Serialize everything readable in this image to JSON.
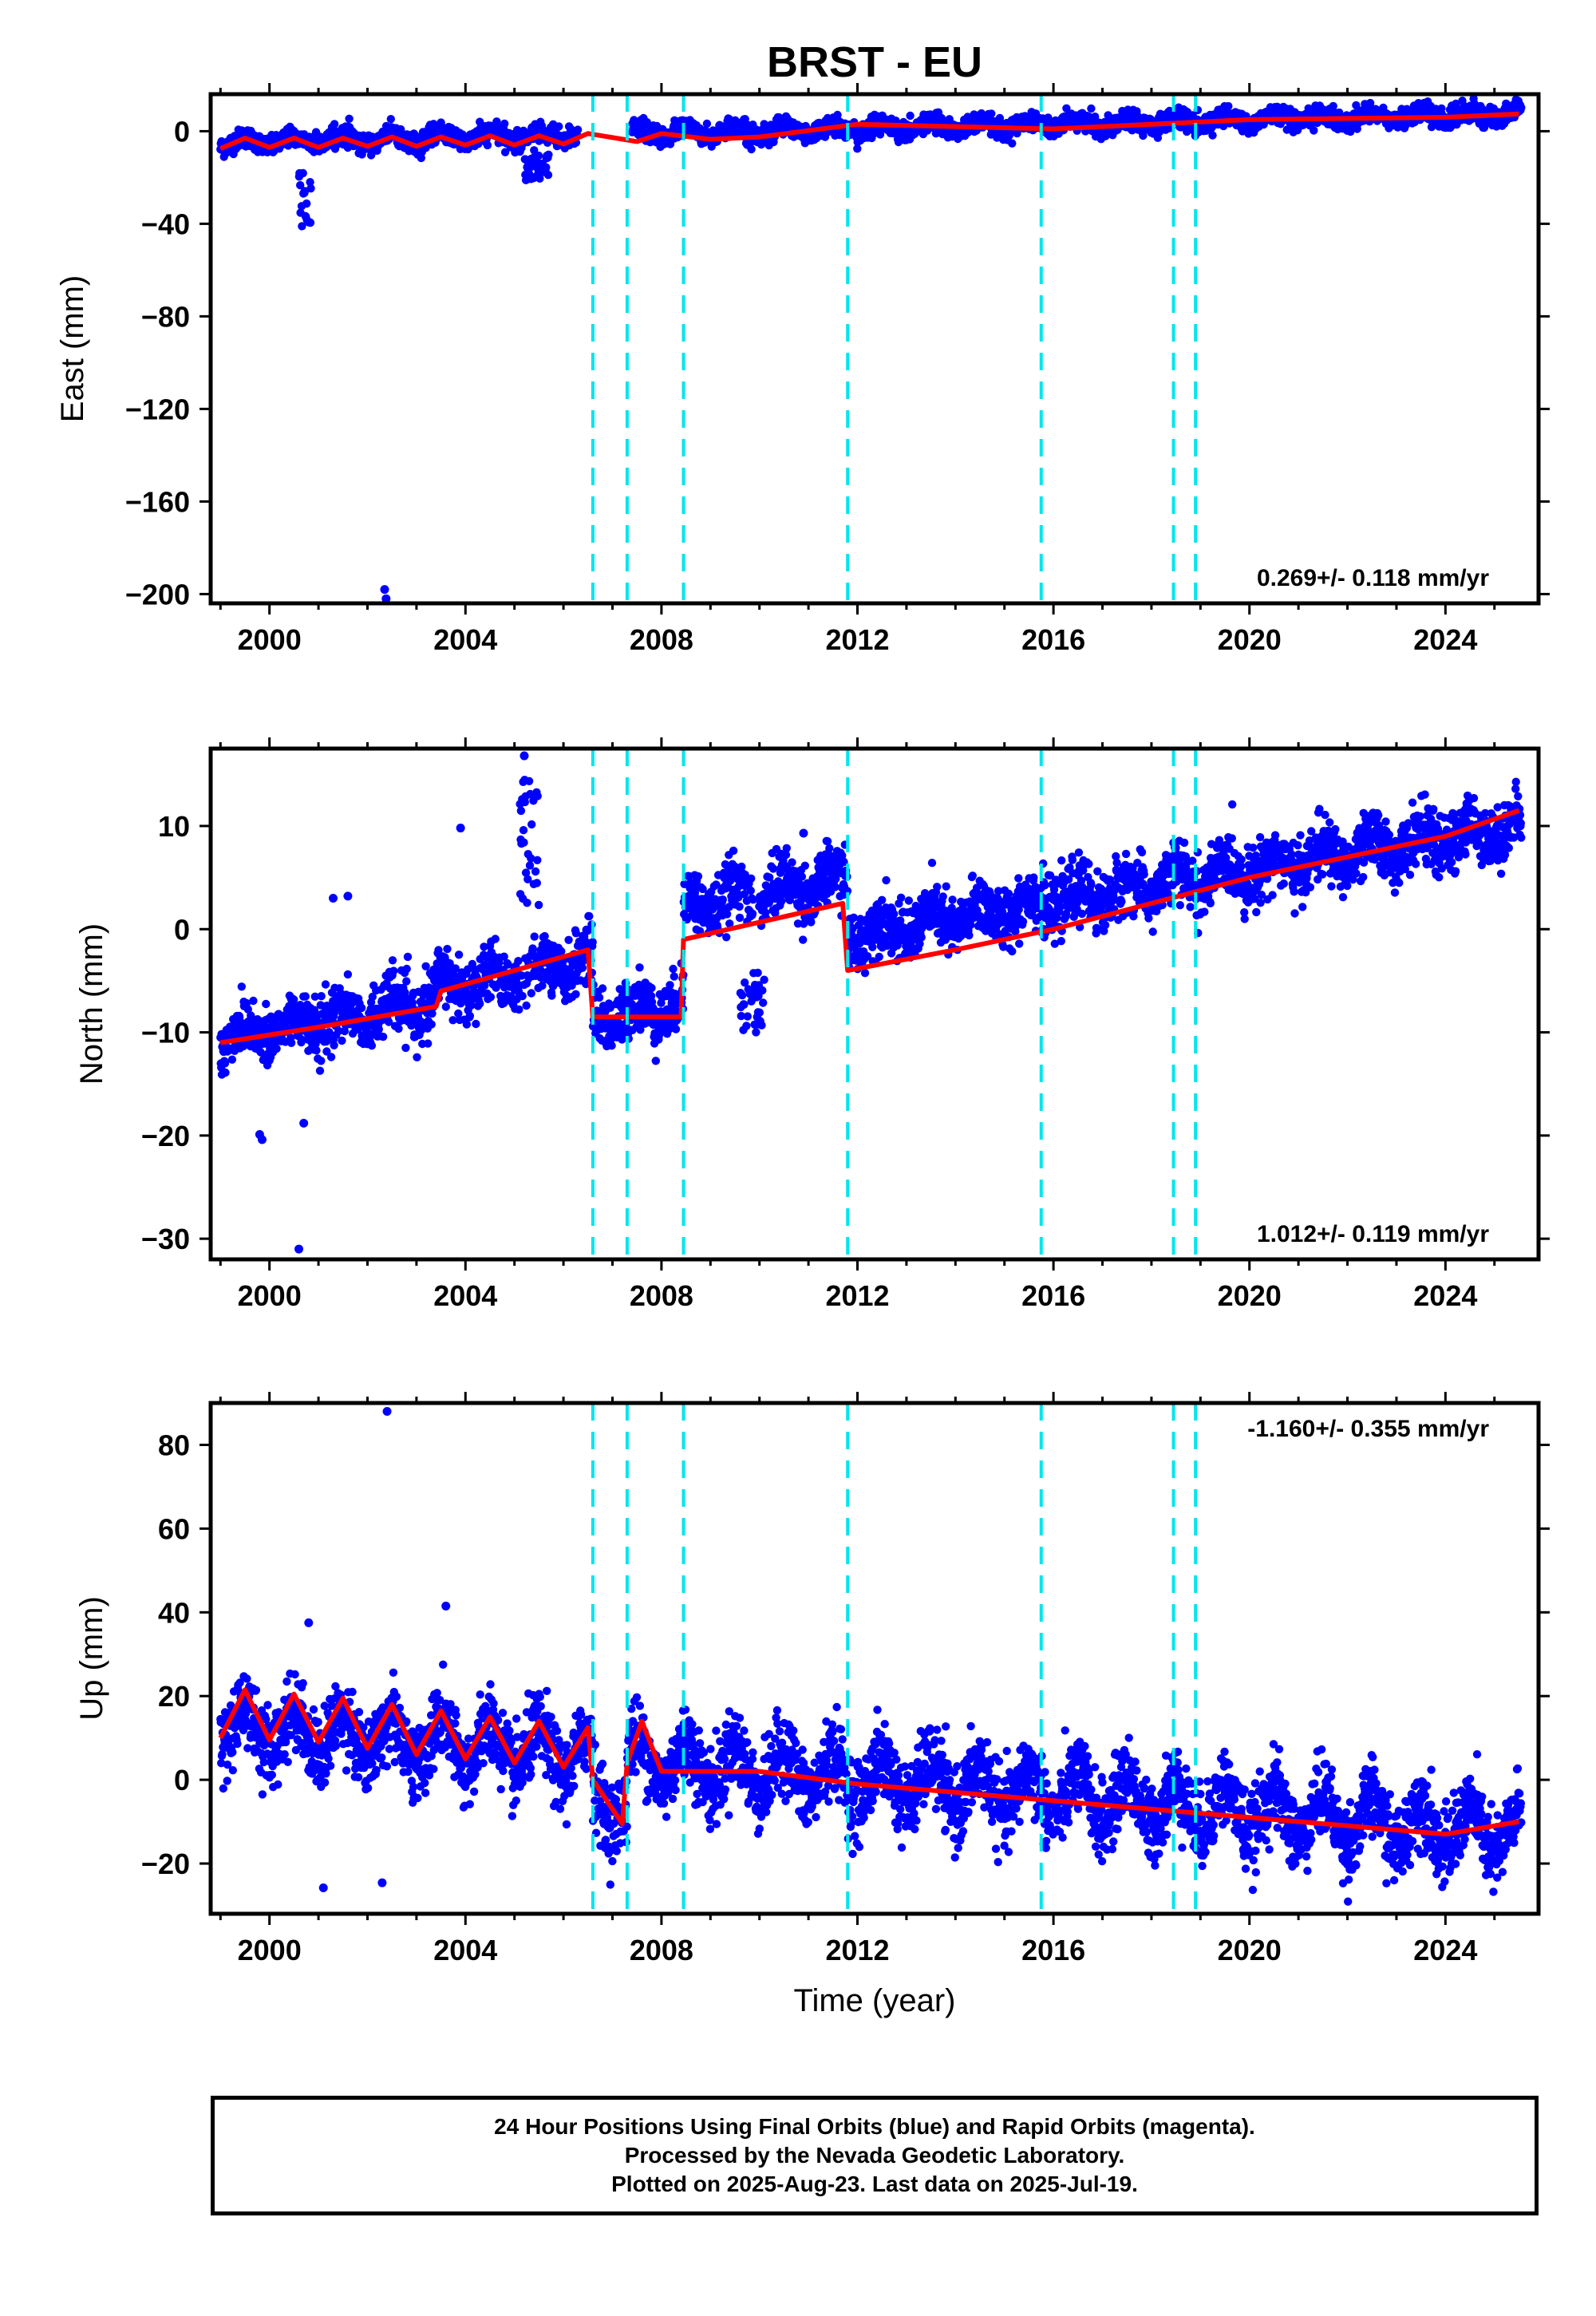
{
  "title": "BRST - EU",
  "xlabel": "Time (year)",
  "footer": [
    "24 Hour Positions Using Final Orbits (blue) and Rapid Orbits (magenta).",
    "Processed by the Nevada Geodetic Laboratory.",
    "Plotted on 2025-Aug-23. Last data on 2025-Jul-19."
  ],
  "colors": {
    "final_orbits": "#0000ff",
    "rapid_orbits": "#ff00ff",
    "model_fit": "#ff0000",
    "breaks": "#00e5ee",
    "axes": "#000000"
  },
  "chart_data": [
    {
      "type": "scatter",
      "component": "east",
      "ylabel": "East (mm)",
      "xlim": [
        1998.8,
        2025.9
      ],
      "ylim": [
        -204,
        16
      ],
      "x_ticks": [
        2000,
        2004,
        2008,
        2012,
        2016,
        2020,
        2024
      ],
      "y_ticks": [
        0,
        -40,
        -80,
        -120,
        -160,
        -200
      ],
      "y_tick_labels": [
        "0",
        "−40",
        "−80",
        "−120",
        "−160",
        "−200"
      ],
      "rate_label": "0.269+/- 0.118 mm/yr",
      "rate_position": "bottom-right",
      "grid": false,
      "breaks": [
        2006.6,
        2007.3,
        2008.45,
        2011.8,
        2015.75,
        2018.45,
        2018.9
      ],
      "data_span": [
        1999.0,
        2025.55
      ],
      "gaps": [
        [
          2006.3,
          2007.4
        ]
      ],
      "trend": {
        "start": -5.0,
        "end": 7.5
      },
      "segment_offsets": [],
      "seasonal_amplitude": 2.2,
      "scatter_sigma": 2.0,
      "excursions": [
        {
          "x0": 2000.6,
          "x1": 2000.85,
          "y0": -18,
          "y1": -42
        },
        {
          "x0": 2005.2,
          "x1": 2005.7,
          "y0": -8,
          "y1": -22
        }
      ],
      "outliers": [
        [
          2002.35,
          -198
        ],
        [
          2002.38,
          -202
        ]
      ],
      "model_points": [
        [
          1999.0,
          -7.5
        ],
        [
          1999.5,
          -3.0
        ],
        [
          2000.0,
          -7.0
        ],
        [
          2000.5,
          -3.0
        ],
        [
          2001.0,
          -7.0
        ],
        [
          2001.5,
          -3.0
        ],
        [
          2002.0,
          -6.5
        ],
        [
          2002.5,
          -2.5
        ],
        [
          2003.0,
          -6.5
        ],
        [
          2003.5,
          -2.5
        ],
        [
          2004.0,
          -6.0
        ],
        [
          2004.5,
          -2.0
        ],
        [
          2005.0,
          -6.0
        ],
        [
          2005.5,
          -2.0
        ],
        [
          2006.0,
          -5.5
        ],
        [
          2006.5,
          -1.0
        ],
        [
          2007.5,
          -4.5
        ],
        [
          2008.0,
          -1.0
        ],
        [
          2009.0,
          -3.5
        ],
        [
          2010.0,
          -2.5
        ],
        [
          2012.0,
          3.0
        ],
        [
          2016.0,
          1.0
        ],
        [
          2020.0,
          5.0
        ],
        [
          2024.0,
          6.0
        ],
        [
          2025.5,
          7.5
        ]
      ]
    },
    {
      "type": "scatter",
      "component": "north",
      "ylabel": "North (mm)",
      "xlim": [
        1998.8,
        2025.9
      ],
      "ylim": [
        -32,
        17.5
      ],
      "x_ticks": [
        2000,
        2004,
        2008,
        2012,
        2016,
        2020,
        2024
      ],
      "y_ticks": [
        10,
        0,
        -10,
        -20,
        -30
      ],
      "y_tick_labels": [
        "10",
        "0",
        "−10",
        "−20",
        "−30"
      ],
      "rate_label": "1.012+/- 0.119 mm/yr",
      "rate_position": "bottom-right",
      "grid": false,
      "breaks": [
        2006.6,
        2007.3,
        2008.45,
        2011.8,
        2015.75,
        2018.45,
        2018.9
      ],
      "data_span": [
        1999.0,
        2025.55
      ],
      "gaps": [],
      "trend": {
        "start": -10.5,
        "end": 10.0
      },
      "segment_offsets": [
        {
          "x0": 2003.4,
          "x1": 2006.6,
          "dy": 1.5
        },
        {
          "x0": 2006.6,
          "x1": 2008.45,
          "dy": -4.0
        },
        {
          "x0": 2008.45,
          "x1": 2011.8,
          "dy": 5.5
        }
      ],
      "seasonal_amplitude": 1.1,
      "scatter_sigma": 1.4,
      "excursions": [
        {
          "x0": 2005.1,
          "x1": 2005.5,
          "y0": 2,
          "y1": 15
        },
        {
          "x0": 2009.6,
          "x1": 2010.1,
          "y0": -4,
          "y1": -10
        }
      ],
      "outliers": [
        [
          2005.2,
          16.8
        ],
        [
          2003.9,
          9.8
        ],
        [
          2001.3,
          3.0
        ],
        [
          2001.6,
          3.2
        ],
        [
          2000.6,
          -31.0
        ],
        [
          1999.8,
          -19.9
        ],
        [
          1999.85,
          -20.4
        ],
        [
          2000.7,
          -18.8
        ],
        [
          2010.9,
          9.3
        ]
      ],
      "model_points": [
        [
          1999.0,
          -11.0
        ],
        [
          2001.0,
          -9.5
        ],
        [
          2003.4,
          -7.5
        ],
        [
          2003.5,
          -6.0
        ],
        [
          2005.0,
          -4.0
        ],
        [
          2006.5,
          -2.0
        ],
        [
          2006.6,
          -8.5
        ],
        [
          2008.4,
          -8.5
        ],
        [
          2008.45,
          -1.0
        ],
        [
          2011.7,
          2.5
        ],
        [
          2011.8,
          -4.0
        ],
        [
          2014.0,
          -2.0
        ],
        [
          2016.0,
          0.0
        ],
        [
          2018.0,
          2.5
        ],
        [
          2020.0,
          5.0
        ],
        [
          2022.0,
          7.0
        ],
        [
          2024.0,
          9.0
        ],
        [
          2025.5,
          11.5
        ]
      ]
    },
    {
      "type": "scatter",
      "component": "up",
      "ylabel": "Up (mm)",
      "xlim": [
        1998.8,
        2025.9
      ],
      "ylim": [
        -32,
        90
      ],
      "x_ticks": [
        2000,
        2004,
        2008,
        2012,
        2016,
        2020,
        2024
      ],
      "y_ticks": [
        80,
        60,
        40,
        20,
        0,
        -20
      ],
      "y_tick_labels": [
        "80",
        "60",
        "40",
        "20",
        "0",
        "−20"
      ],
      "rate_label": "-1.160+/- 0.355 mm/yr",
      "rate_position": "top-right",
      "grid": false,
      "breaks": [
        2006.6,
        2007.3,
        2008.45,
        2011.8,
        2015.75,
        2018.45,
        2018.9
      ],
      "data_span": [
        1999.0,
        2025.55
      ],
      "gaps": [],
      "trend": {
        "start": 13.0,
        "end": -13.0
      },
      "segment_offsets": [
        {
          "x0": 2006.6,
          "x1": 2007.3,
          "dy": -10.0
        }
      ],
      "seasonal_amplitude": 5.5,
      "scatter_sigma": 4.5,
      "excursions": [],
      "outliers": [
        [
          2002.4,
          88.0
        ],
        [
          2003.6,
          41.5
        ],
        [
          2001.1,
          -25.8
        ],
        [
          2002.3,
          -24.6
        ],
        [
          2000.8,
          37.5
        ]
      ],
      "model_points": [
        [
          1999.0,
          10.0
        ],
        [
          1999.5,
          21.5
        ],
        [
          2000.0,
          9.5
        ],
        [
          2000.5,
          20.5
        ],
        [
          2001.0,
          9.0
        ],
        [
          2001.5,
          19.5
        ],
        [
          2002.0,
          7.5
        ],
        [
          2002.5,
          18.0
        ],
        [
          2003.0,
          6.0
        ],
        [
          2003.5,
          16.5
        ],
        [
          2004.0,
          5.0
        ],
        [
          2004.5,
          15.0
        ],
        [
          2005.0,
          4.0
        ],
        [
          2005.5,
          14.0
        ],
        [
          2006.0,
          3.0
        ],
        [
          2006.5,
          12.5
        ],
        [
          2006.6,
          0.0
        ],
        [
          2007.2,
          -10.5
        ],
        [
          2007.3,
          4.0
        ],
        [
          2007.6,
          14.0
        ],
        [
          2008.0,
          2.0
        ],
        [
          2010.0,
          2.0
        ],
        [
          2012.0,
          -1.0
        ],
        [
          2014.0,
          -3.0
        ],
        [
          2016.0,
          -5.0
        ],
        [
          2018.0,
          -7.0
        ],
        [
          2020.0,
          -9.0
        ],
        [
          2022.0,
          -11.0
        ],
        [
          2024.0,
          -13.0
        ],
        [
          2025.5,
          -10.0
        ]
      ]
    }
  ]
}
